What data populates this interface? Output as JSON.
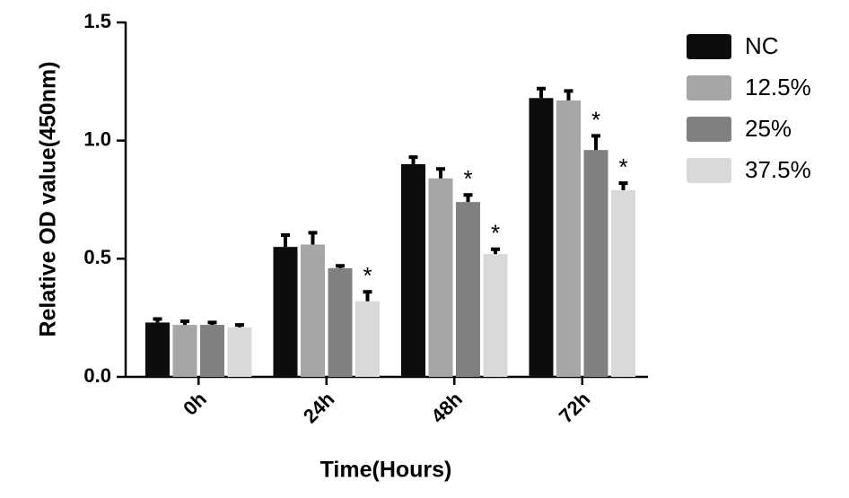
{
  "chart_data": {
    "type": "bar",
    "x_label": "Time(Hours)",
    "y_label": "Relative OD value(450nm)",
    "categories": [
      "0h",
      "24h",
      "48h",
      "72h"
    ],
    "series": [
      {
        "name": "NC",
        "color": "#0d0d0d",
        "values": [
          0.23,
          0.55,
          0.9,
          1.18
        ],
        "errors": [
          0.015,
          0.05,
          0.03,
          0.04
        ],
        "significance": [
          null,
          null,
          null,
          null
        ]
      },
      {
        "name": "12.5%",
        "color": "#a6a6a6",
        "values": [
          0.22,
          0.56,
          0.84,
          1.17
        ],
        "errors": [
          0.015,
          0.05,
          0.04,
          0.04
        ],
        "significance": [
          null,
          null,
          null,
          null
        ]
      },
      {
        "name": "25%",
        "color": "#808080",
        "values": [
          0.22,
          0.46,
          0.74,
          0.96
        ],
        "errors": [
          0.01,
          0.01,
          0.03,
          0.06
        ],
        "significance": [
          null,
          null,
          "*",
          "*"
        ]
      },
      {
        "name": "37.5%",
        "color": "#d9d9d9",
        "values": [
          0.21,
          0.32,
          0.52,
          0.79
        ],
        "errors": [
          0.01,
          0.04,
          0.02,
          0.03
        ],
        "significance": [
          null,
          "*",
          "*",
          "*"
        ]
      }
    ],
    "ylim": [
      0,
      1.5
    ],
    "yticks": [
      {
        "value": 0,
        "label": "0.0"
      },
      0.5,
      {
        "value": 1,
        "label": "1.0"
      },
      1.5
    ],
    "legend": "right"
  }
}
